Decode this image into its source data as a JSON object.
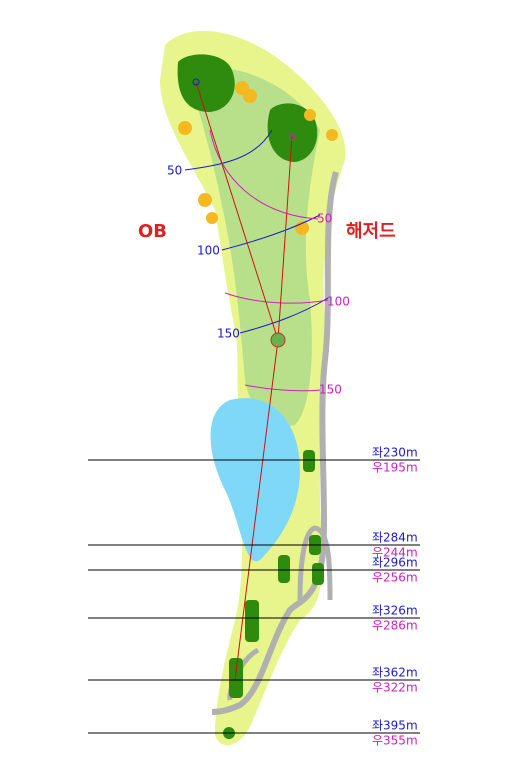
{
  "zones": {
    "ob": "OB",
    "hazard": "해저드"
  },
  "arcs": {
    "left_pin": [
      "50",
      "100",
      "150"
    ],
    "right_pin": [
      "50",
      "100",
      "150"
    ]
  },
  "markers": [
    {
      "left": "좌230m",
      "right": "우195m"
    },
    {
      "left": "좌284m",
      "right": "우244m"
    },
    {
      "left": "좌296m",
      "right": "우256m"
    },
    {
      "left": "좌326m",
      "right": "우286m"
    },
    {
      "left": "좌362m",
      "right": "우322m"
    },
    {
      "left": "좌395m",
      "right": "우355m"
    }
  ]
}
